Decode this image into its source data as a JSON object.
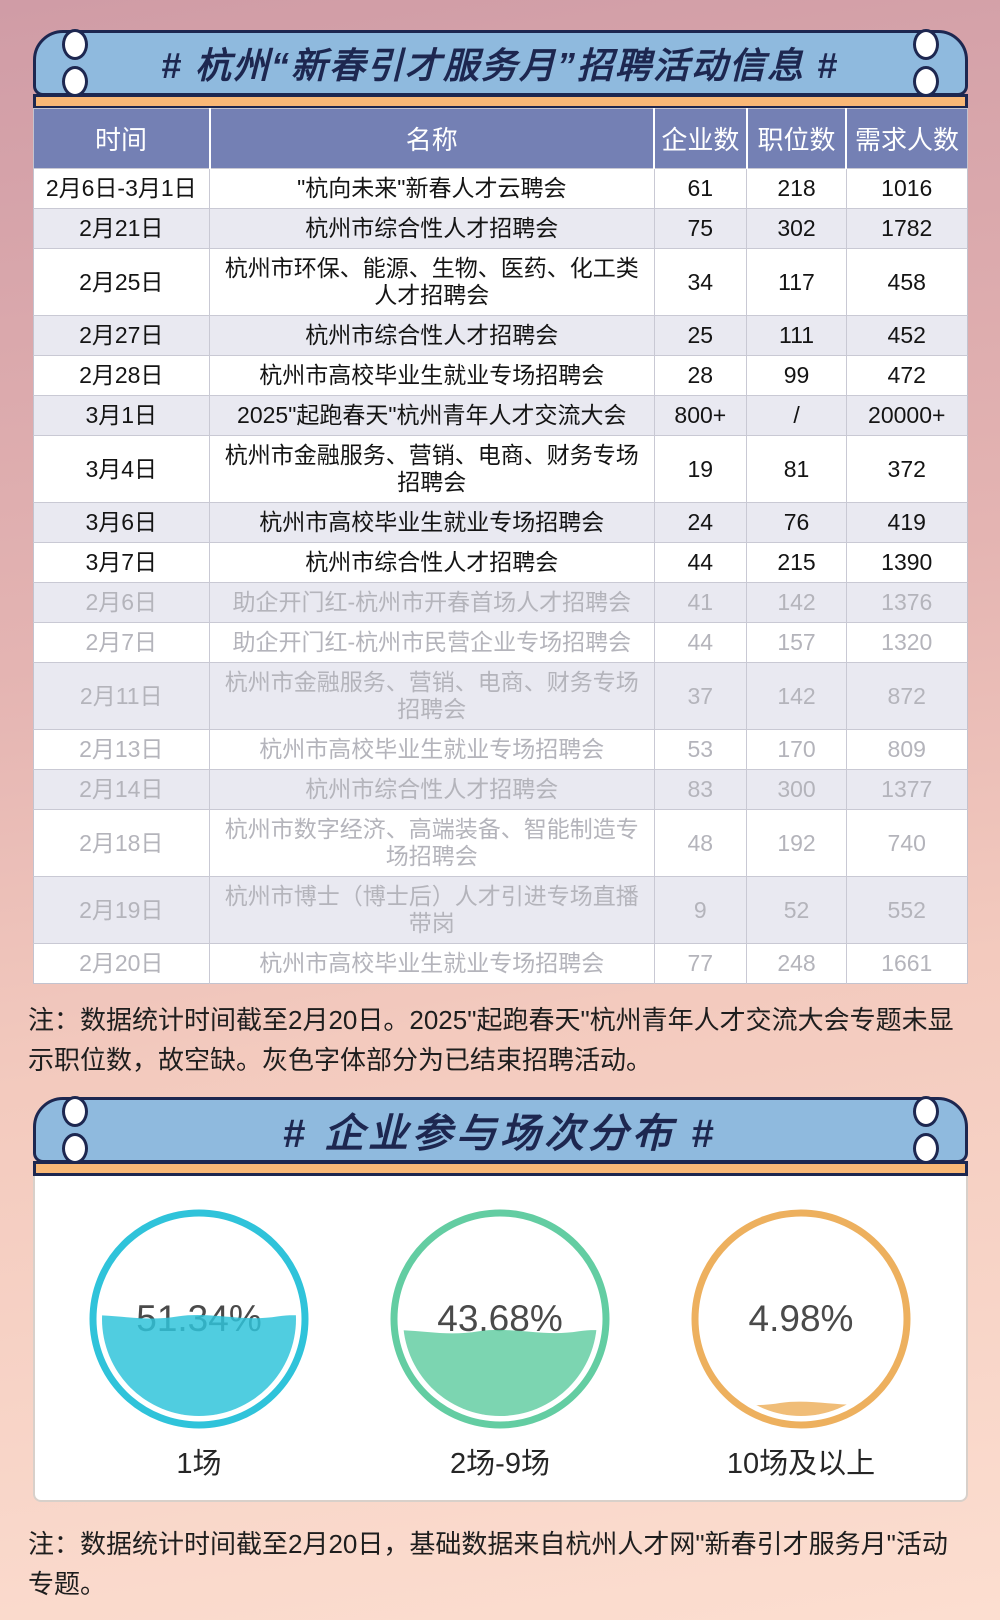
{
  "header": {
    "title": "# 杭州“新春引才服务月”招聘活动信息 #"
  },
  "table": {
    "headers": [
      "时间",
      "名称",
      "企业数",
      "职位数",
      "需求人数"
    ],
    "rows": [
      {
        "date": "2月6日-3月1日",
        "name": "\"杭向未来\"新春人才云聘会",
        "companies": "61",
        "positions": "218",
        "demand": "1016",
        "ended": false
      },
      {
        "date": "2月21日",
        "name": "杭州市综合性人才招聘会",
        "companies": "75",
        "positions": "302",
        "demand": "1782",
        "ended": false
      },
      {
        "date": "2月25日",
        "name": "杭州市环保、能源、生物、医药、化工类人才招聘会",
        "companies": "34",
        "positions": "117",
        "demand": "458",
        "ended": false
      },
      {
        "date": "2月27日",
        "name": "杭州市综合性人才招聘会",
        "companies": "25",
        "positions": "111",
        "demand": "452",
        "ended": false
      },
      {
        "date": "2月28日",
        "name": "杭州市高校毕业生就业专场招聘会",
        "companies": "28",
        "positions": "99",
        "demand": "472",
        "ended": false
      },
      {
        "date": "3月1日",
        "name": "2025\"起跑春天\"杭州青年人才交流大会",
        "companies": "800+",
        "positions": "/",
        "demand": "20000+",
        "ended": false
      },
      {
        "date": "3月4日",
        "name": "杭州市金融服务、营销、电商、财务专场招聘会",
        "companies": "19",
        "positions": "81",
        "demand": "372",
        "ended": false
      },
      {
        "date": "3月6日",
        "name": "杭州市高校毕业生就业专场招聘会",
        "companies": "24",
        "positions": "76",
        "demand": "419",
        "ended": false
      },
      {
        "date": "3月7日",
        "name": "杭州市综合性人才招聘会",
        "companies": "44",
        "positions": "215",
        "demand": "1390",
        "ended": false
      },
      {
        "date": "2月6日",
        "name": "助企开门红-杭州市开春首场人才招聘会",
        "companies": "41",
        "positions": "142",
        "demand": "1376",
        "ended": true
      },
      {
        "date": "2月7日",
        "name": "助企开门红-杭州市民营企业专场招聘会",
        "companies": "44",
        "positions": "157",
        "demand": "1320",
        "ended": true
      },
      {
        "date": "2月11日",
        "name": "杭州市金融服务、营销、电商、财务专场招聘会",
        "companies": "37",
        "positions": "142",
        "demand": "872",
        "ended": true
      },
      {
        "date": "2月13日",
        "name": "杭州市高校毕业生就业专场招聘会",
        "companies": "53",
        "positions": "170",
        "demand": "809",
        "ended": true
      },
      {
        "date": "2月14日",
        "name": "杭州市综合性人才招聘会",
        "companies": "83",
        "positions": "300",
        "demand": "1377",
        "ended": true
      },
      {
        "date": "2月18日",
        "name": "杭州市数字经济、高端装备、智能制造专场招聘会",
        "companies": "48",
        "positions": "192",
        "demand": "740",
        "ended": true
      },
      {
        "date": "2月19日",
        "name": "杭州市博士（博士后）人才引进专场直播带岗",
        "companies": "9",
        "positions": "52",
        "demand": "552",
        "ended": true
      },
      {
        "date": "2月20日",
        "name": "杭州市高校毕业生就业专场招聘会",
        "companies": "77",
        "positions": "248",
        "demand": "1661",
        "ended": true
      }
    ]
  },
  "notes": {
    "table_note": "注：数据统计时间截至2月20日。2025\"起跑春天\"杭州青年人才交流大会专题未显示职位数，故空缺。灰色字体部分为已结束招聘活动。",
    "chart_note": "注：数据统计时间截至2月20日，基础数据来自杭州人才网\"新春引才服务月\"活动专题。"
  },
  "chart_data": {
    "type": "pie",
    "variant": "liquid-fill-gauge",
    "title": "# 企业参与场次分布 #",
    "categories": [
      "1场",
      "2场-9场",
      "10场及以上"
    ],
    "values": [
      51.34,
      43.68,
      4.98
    ],
    "unit": "%",
    "colors": [
      "#2fc3da",
      "#63cda2",
      "#edb05e"
    ],
    "legend_position": "below-each-gauge"
  },
  "colors": {
    "banner_bg": "#8fbade",
    "banner_border": "#1d2750",
    "strip": "#f9b876",
    "table_header_bg": "#7480b4",
    "ended_text": "#b4b4bb",
    "bg_top": "#d09ca6",
    "bg_bottom": "#fcded0"
  }
}
